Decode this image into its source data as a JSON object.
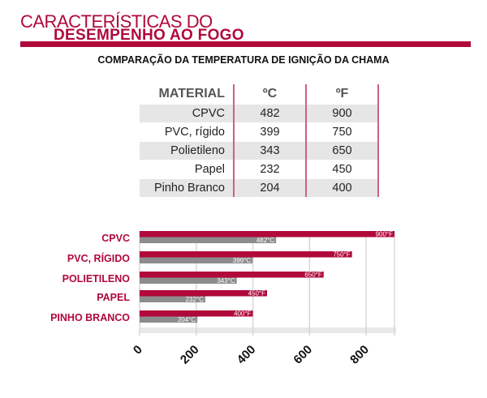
{
  "header": {
    "title_line1": "CARACTERÍSTICAS DO",
    "title_line2": "DESEMPENHO AO FOGO",
    "subtitle": "COMPARAÇÃO DA TEMPERATURA DE IGNIÇÃO DA CHAMA"
  },
  "table": {
    "headers": [
      "MATERIAL",
      "ºC",
      "ºF"
    ],
    "rows": [
      [
        "CPVC",
        "482",
        "900"
      ],
      [
        "PVC, rígido",
        "399",
        "750"
      ],
      [
        "Polietileno",
        "343",
        "650"
      ],
      [
        "Papel",
        "232",
        "450"
      ],
      [
        "Pinho Branco",
        "204",
        "400"
      ]
    ]
  },
  "chart_data": {
    "type": "bar",
    "orientation": "horizontal",
    "categories": [
      "CPVC",
      "PVC, RÍGIDO",
      "POLIETILENO",
      "PAPEL",
      "PINHO BRANCO"
    ],
    "series": [
      {
        "unit": "°F",
        "values": [
          900,
          750,
          650,
          450,
          400
        ],
        "labels": [
          "900°F",
          "750°F",
          "650°F",
          "450°F",
          "400°F"
        ],
        "color": "#b0093a"
      },
      {
        "unit": "°C",
        "values": [
          482,
          399,
          343,
          232,
          204
        ],
        "labels": [
          "482°C",
          "399°C",
          "343°C",
          "232°C",
          "204°C"
        ],
        "color": "#8c8c8e"
      }
    ],
    "xlim": [
      0,
      900
    ],
    "xticks": [
      "0",
      "200",
      "400",
      "600",
      "800"
    ],
    "grid": true
  }
}
